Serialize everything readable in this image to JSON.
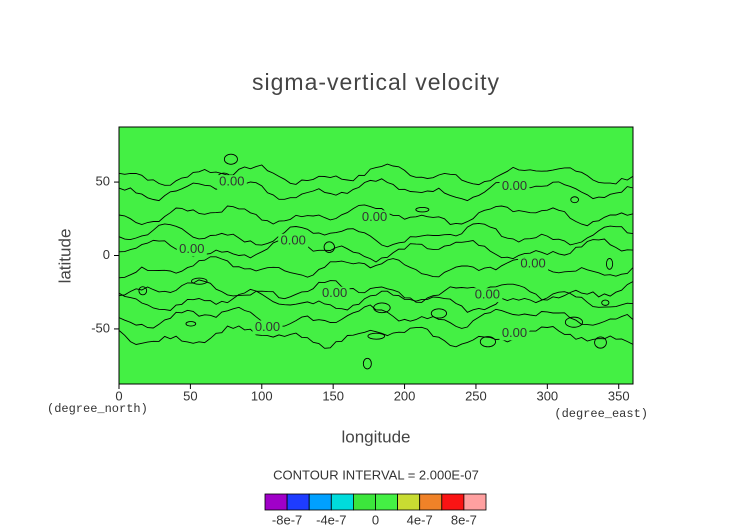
{
  "chart_data": {
    "type": "contour",
    "title": "sigma-vertical velocity",
    "x_label": "longitude",
    "y_label": "latitude",
    "x_unit": "(degree_east)",
    "y_unit": "(degree_north)",
    "xlim": [
      0,
      360
    ],
    "ylim": [
      -87.5,
      87.5
    ],
    "xticks": [
      0,
      50,
      100,
      150,
      200,
      250,
      300,
      350
    ],
    "yticks": [
      -50,
      0,
      50
    ],
    "field_color": "#44f044",
    "contour_level": 0,
    "contour_labels": [
      {
        "value": 0,
        "label": "0.00",
        "lon": 79,
        "lat": 50
      },
      {
        "value": 0,
        "label": "0.00",
        "lon": 277,
        "lat": 47
      },
      {
        "value": 0,
        "label": "0.00",
        "lon": 179,
        "lat": 26
      },
      {
        "value": 0,
        "label": "0.00",
        "lon": 122,
        "lat": 10
      },
      {
        "value": 0,
        "label": "0.00",
        "lon": 51,
        "lat": 4
      },
      {
        "value": 0,
        "label": "0.00",
        "lon": 290,
        "lat": -6
      },
      {
        "value": 0,
        "label": "0.00",
        "lon": 151,
        "lat": -26
      },
      {
        "value": 0,
        "label": "0.00",
        "lon": 258,
        "lat": -27
      },
      {
        "value": 0,
        "label": "0.00",
        "lon": 104,
        "lat": -49
      },
      {
        "value": 0,
        "label": "0.00",
        "lon": 277,
        "lat": -53
      }
    ],
    "contour_interval_text": "CONTOUR INTERVAL = 2.000E-07",
    "colorbar": {
      "levels": [
        -8e-07,
        -6e-07,
        -4e-07,
        -2e-07,
        0,
        2e-07,
        4e-07,
        6e-07,
        8e-07
      ],
      "ticks": [
        -8e-07,
        -4e-07,
        0,
        4e-07,
        8e-07
      ],
      "colors": [
        "#a000c8",
        "#1e3cff",
        "#00a0ff",
        "#00dcdc",
        "#3ce63c",
        "#44f044",
        "#c8dc32",
        "#f08228",
        "#fa1414",
        "#ffa0a0"
      ]
    }
  }
}
